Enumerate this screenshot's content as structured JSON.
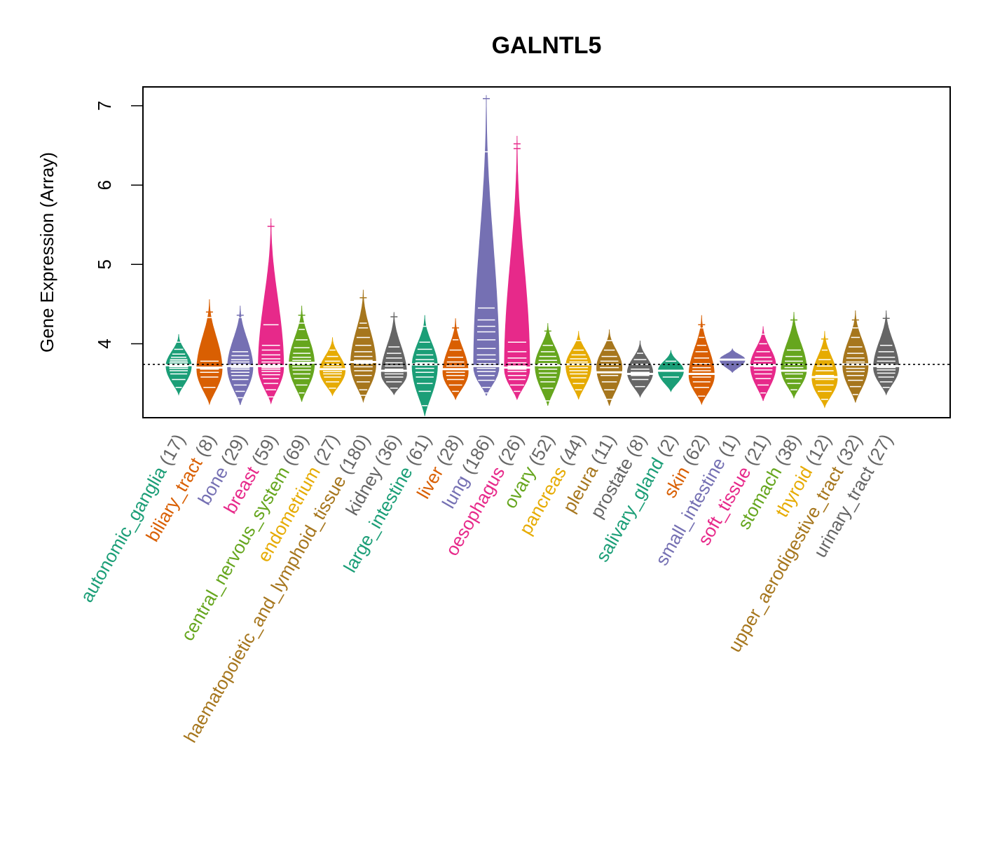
{
  "chart_data": {
    "type": "beanplot",
    "title": "GALNTL5",
    "ylabel": "Gene Expression (Array)",
    "xlabel": "",
    "ylim": [
      3.07,
      7.25
    ],
    "yticks": [
      4,
      5,
      6,
      7
    ],
    "reference_line": 3.74,
    "grid": false,
    "legend": "none",
    "colors": {
      "autonomic_ganglia": "#1B9E77",
      "biliary_tract": "#D95F02",
      "bone": "#7570B3",
      "breast": "#E7298A",
      "central_nervous_system": "#66A61E",
      "endometrium": "#E6AB02",
      "haematopoietic_and_lymphoid_tissue": "#A6761D",
      "kidney": "#666666"
    },
    "categories": [
      {
        "name": "autonomic_ganglia",
        "n": "(17)",
        "color": "#1B9E77",
        "min": 3.36,
        "max": 4.12,
        "median": 3.73,
        "mode": 3.72,
        "points": [
          3.45,
          3.55,
          3.62,
          3.66,
          3.69,
          3.71,
          3.72,
          3.73,
          3.74,
          3.76,
          3.78,
          3.8,
          3.83,
          3.87,
          3.93,
          4.02
        ]
      },
      {
        "name": "biliary_tract",
        "n": "(8)",
        "color": "#D95F02",
        "min": 3.24,
        "max": 4.56,
        "median": 3.7,
        "mode": 3.68,
        "points": [
          3.45,
          3.58,
          3.64,
          3.68,
          3.7,
          3.78,
          4.33,
          4.4
        ]
      },
      {
        "name": "bone",
        "n": "(29)",
        "color": "#7570B3",
        "min": 3.23,
        "max": 4.48,
        "median": 3.72,
        "mode": 3.7,
        "points": [
          3.32,
          3.4,
          3.48,
          3.55,
          3.6,
          3.64,
          3.68,
          3.7,
          3.72,
          3.74,
          3.77,
          3.8,
          3.85,
          3.9,
          4.33,
          4.36
        ]
      },
      {
        "name": "breast",
        "n": "(59)",
        "color": "#E7298A",
        "min": 3.25,
        "max": 5.58,
        "median": 3.72,
        "mode": 3.7,
        "points": [
          3.33,
          3.42,
          3.5,
          3.56,
          3.61,
          3.65,
          3.68,
          3.7,
          3.72,
          3.74,
          3.77,
          3.81,
          3.86,
          3.92,
          3.98,
          4.24,
          5.48
        ]
      },
      {
        "name": "central_nervous_system",
        "n": "(69)",
        "color": "#66A61E",
        "min": 3.27,
        "max": 4.48,
        "median": 3.76,
        "mode": 3.74,
        "points": [
          3.38,
          3.48,
          3.56,
          3.62,
          3.67,
          3.71,
          3.74,
          3.76,
          3.79,
          3.83,
          3.88,
          3.95,
          4.05,
          4.18,
          4.26,
          4.36
        ]
      },
      {
        "name": "endometrium",
        "n": "(27)",
        "color": "#E6AB02",
        "min": 3.35,
        "max": 4.08,
        "median": 3.68,
        "mode": 3.66,
        "points": [
          3.44,
          3.52,
          3.58,
          3.62,
          3.65,
          3.68,
          3.71,
          3.74,
          3.78,
          3.84,
          3.92
        ]
      },
      {
        "name": "haematopoietic_and_lymphoid_tissue",
        "n": "(180)",
        "color": "#A6761D",
        "min": 3.27,
        "max": 4.68,
        "median": 3.77,
        "mode": 3.74,
        "points": [
          3.35,
          3.42,
          3.52,
          3.6,
          3.66,
          3.71,
          3.75,
          3.79,
          3.84,
          3.9,
          3.98,
          4.08,
          4.2,
          4.26,
          4.58
        ]
      },
      {
        "name": "kidney",
        "n": "(36)",
        "color": "#666666",
        "min": 3.36,
        "max": 4.4,
        "median": 3.66,
        "mode": 3.62,
        "points": [
          3.44,
          3.52,
          3.58,
          3.62,
          3.65,
          3.68,
          3.72,
          3.76,
          3.82,
          3.88,
          3.96,
          4.34
        ]
      },
      {
        "name": "large_intestine",
        "n": "(61)",
        "color": "#1B9E77",
        "min": 3.09,
        "max": 4.36,
        "median": 3.74,
        "mode": 3.72,
        "points": [
          3.22,
          3.4,
          3.5,
          3.58,
          3.64,
          3.69,
          3.73,
          3.76,
          3.8,
          3.86,
          3.93,
          4.02,
          4.22
        ]
      },
      {
        "name": "liver",
        "n": "(28)",
        "color": "#D95F02",
        "min": 3.3,
        "max": 4.32,
        "median": 3.68,
        "mode": 3.64,
        "points": [
          3.4,
          3.48,
          3.55,
          3.6,
          3.64,
          3.68,
          3.72,
          3.77,
          3.83,
          3.92,
          4.05,
          4.2
        ]
      },
      {
        "name": "lung",
        "n": "(186)",
        "color": "#7570B3",
        "min": 3.35,
        "max": 7.12,
        "median": 3.72,
        "mode": 3.7,
        "points": [
          3.38,
          3.45,
          3.54,
          3.6,
          3.65,
          3.69,
          3.72,
          3.75,
          3.8,
          3.86,
          3.94,
          4.05,
          4.15,
          4.22,
          4.3,
          4.45,
          6.42,
          7.09
        ]
      },
      {
        "name": "oesophagus",
        "n": "(26)",
        "color": "#E7298A",
        "min": 3.3,
        "max": 6.62,
        "median": 3.7,
        "mode": 3.68,
        "points": [
          3.4,
          3.48,
          3.55,
          3.6,
          3.65,
          3.68,
          3.72,
          3.76,
          3.82,
          3.9,
          4.02,
          6.46,
          6.52
        ]
      },
      {
        "name": "ovary",
        "n": "(52)",
        "color": "#66A61E",
        "min": 3.22,
        "max": 4.26,
        "median": 3.73,
        "mode": 3.72,
        "points": [
          3.28,
          3.44,
          3.52,
          3.58,
          3.63,
          3.68,
          3.72,
          3.75,
          3.79,
          3.84,
          3.9,
          3.98,
          4.16
        ]
      },
      {
        "name": "pancreas",
        "n": "(44)",
        "color": "#E6AB02",
        "min": 3.3,
        "max": 4.16,
        "median": 3.74,
        "mode": 3.72,
        "points": [
          3.42,
          3.5,
          3.57,
          3.62,
          3.66,
          3.7,
          3.74,
          3.77,
          3.81,
          3.86,
          3.92,
          4.04
        ]
      },
      {
        "name": "pleura",
        "n": "(11)",
        "color": "#A6761D",
        "min": 3.22,
        "max": 4.18,
        "median": 3.64,
        "mode": 3.7,
        "points": [
          3.3,
          3.42,
          3.52,
          3.6,
          3.64,
          3.7,
          3.74,
          3.78,
          3.84,
          3.92,
          4.04
        ]
      },
      {
        "name": "prostate",
        "n": "(8)",
        "color": "#666666",
        "min": 3.33,
        "max": 4.04,
        "median": 3.62,
        "mode": 3.64,
        "points": [
          3.46,
          3.55,
          3.6,
          3.64,
          3.68,
          3.74,
          3.8,
          3.88
        ]
      },
      {
        "name": "salivary_gland",
        "n": "(2)",
        "color": "#1B9E77",
        "min": 3.4,
        "max": 3.92,
        "median": 3.66,
        "mode": 3.66,
        "points": [
          3.58,
          3.78
        ]
      },
      {
        "name": "skin",
        "n": "(62)",
        "color": "#D95F02",
        "min": 3.24,
        "max": 4.36,
        "median": 3.62,
        "mode": 3.6,
        "points": [
          3.34,
          3.45,
          3.52,
          3.58,
          3.62,
          3.66,
          3.7,
          3.75,
          3.82,
          3.9,
          3.98,
          4.08,
          4.2,
          4.24
        ]
      },
      {
        "name": "small_intestine",
        "n": "(1)",
        "color": "#7570B3",
        "min": 3.64,
        "max": 3.94,
        "median": 3.8,
        "mode": 3.8,
        "points": [
          3.8
        ]
      },
      {
        "name": "soft_tissue",
        "n": "(21)",
        "color": "#E7298A",
        "min": 3.28,
        "max": 4.22,
        "median": 3.73,
        "mode": 3.72,
        "points": [
          3.38,
          3.48,
          3.56,
          3.62,
          3.67,
          3.71,
          3.74,
          3.78,
          3.83,
          3.9,
          4.0,
          4.12
        ]
      },
      {
        "name": "stomach",
        "n": "(38)",
        "color": "#66A61E",
        "min": 3.32,
        "max": 4.4,
        "median": 3.66,
        "mode": 3.68,
        "points": [
          3.42,
          3.5,
          3.56,
          3.62,
          3.66,
          3.7,
          3.74,
          3.78,
          3.84,
          3.92,
          4.3
        ]
      },
      {
        "name": "thyroid",
        "n": "(12)",
        "color": "#E6AB02",
        "min": 3.2,
        "max": 4.16,
        "median": 3.58,
        "mode": 3.56,
        "points": [
          3.3,
          3.4,
          3.48,
          3.55,
          3.6,
          3.66,
          3.72,
          3.8,
          3.92,
          4.06
        ]
      },
      {
        "name": "upper_aerodigestive_tract",
        "n": "(32)",
        "color": "#A6761D",
        "min": 3.26,
        "max": 4.42,
        "median": 3.74,
        "mode": 3.72,
        "points": [
          3.36,
          3.46,
          3.54,
          3.6,
          3.65,
          3.69,
          3.73,
          3.77,
          3.82,
          3.88,
          3.96,
          4.08,
          4.2,
          4.3
        ]
      },
      {
        "name": "urinary_tract",
        "n": "(27)",
        "color": "#666666",
        "min": 3.36,
        "max": 4.42,
        "median": 3.72,
        "mode": 3.7,
        "points": [
          3.45,
          3.52,
          3.58,
          3.63,
          3.67,
          3.7,
          3.74,
          3.78,
          3.83,
          3.9,
          3.98,
          4.32
        ]
      }
    ]
  }
}
